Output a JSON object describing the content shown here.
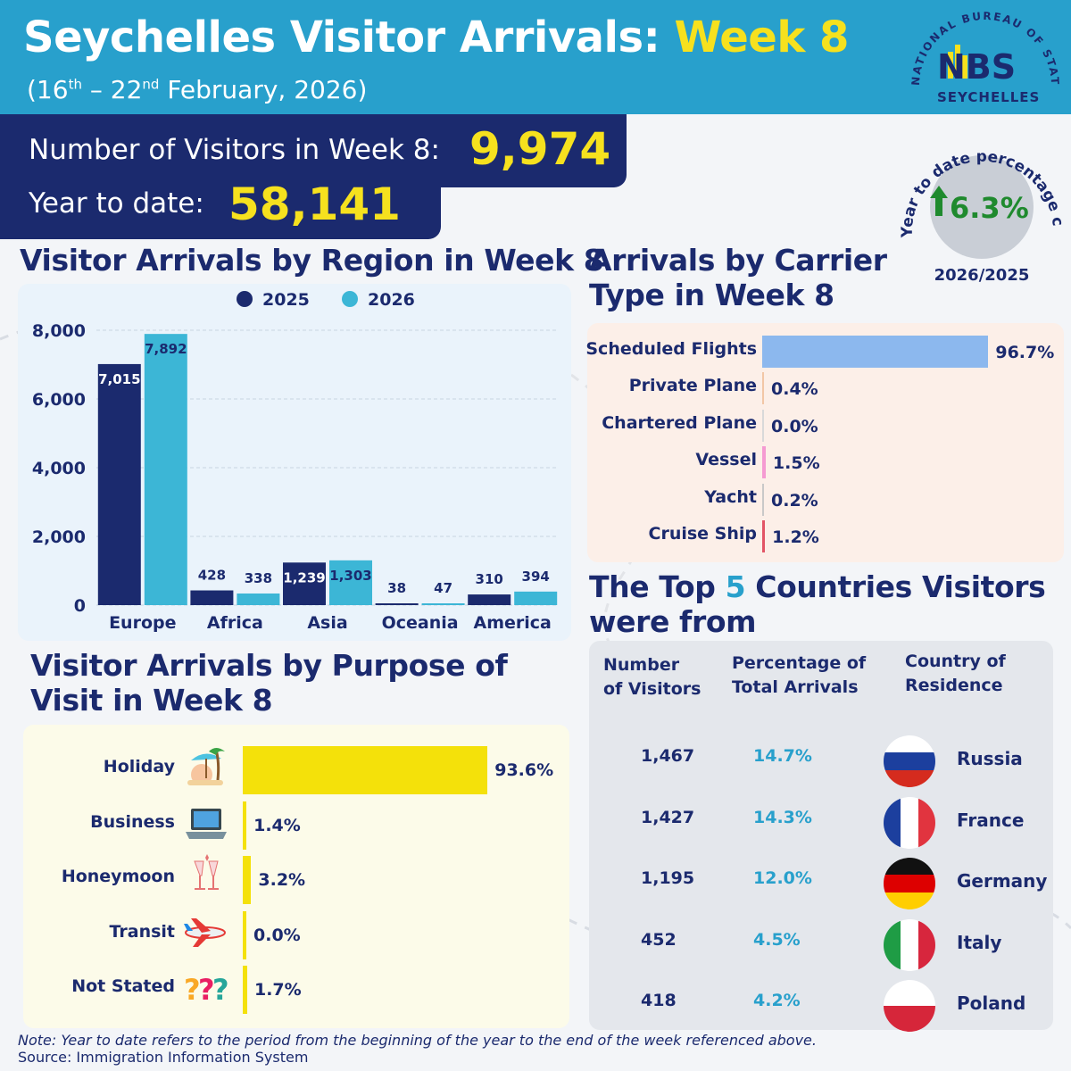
{
  "header": {
    "title_main": "Seychelles Visitor Arrivals: ",
    "title_highlight": "Week 8",
    "subtitle_open": "(16",
    "subtitle_sup1": "th",
    "subtitle_mid": " – 22",
    "subtitle_sup2": "nd",
    "subtitle_close": " February, 2026)"
  },
  "logo": {
    "arc_text": "NATIONAL BUREAU OF STATISTICS",
    "mark": "NBS",
    "country": "SEYCHELLES"
  },
  "summary": {
    "visitors_label": "Number of Visitors in Week 8:",
    "visitors_value": "9,974",
    "ytd_label": "Year to date:",
    "ytd_value": "58,141"
  },
  "ytd_change": {
    "arc_label": "Year to date percentage change",
    "value": "6.3%",
    "direction": "up",
    "period": "2026/2025",
    "color": "#1f8a2e"
  },
  "colors": {
    "navy": "#1b2a6e",
    "header_blue": "#28a0cc",
    "yellow": "#f6e11e",
    "series_2025": "#1b2a6e",
    "series_2026": "#3cb6d6",
    "carrier_scheduled": "#8cb8ee",
    "purpose_bar": "#f4e10a"
  },
  "sections": {
    "region_title": "Visitor Arrivals by Region in Week 8",
    "carrier_title_1": "Arrivals by Carrier",
    "carrier_title_2": "Type in Week 8",
    "purpose_title_1": "Visitor Arrivals by Purpose of",
    "purpose_title_2": "Visit in Week 8",
    "top5_title_pre": "The Top ",
    "top5_title_num": "5",
    "top5_title_post": " Countries Visitors",
    "top5_title_2": "were from"
  },
  "chart_data": [
    {
      "type": "bar",
      "categories": [
        "Europe",
        "Africa",
        "Asia",
        "Oceania",
        "America"
      ],
      "series": [
        {
          "name": "2025",
          "values": [
            7015,
            428,
            1239,
            38,
            310
          ],
          "labels": [
            "7,015",
            "428",
            "1,239",
            "38",
            "310"
          ]
        },
        {
          "name": "2026",
          "values": [
            7892,
            338,
            1303,
            47,
            394
          ],
          "labels": [
            "7,892",
            "338",
            "1,303",
            "47",
            "394"
          ]
        }
      ],
      "title": "Visitor Arrivals by Region in Week 8",
      "ylim": [
        0,
        8000
      ],
      "yticks": [
        0,
        2000,
        4000,
        6000,
        8000
      ],
      "ytick_labels": [
        "0",
        "2,000",
        "4,000",
        "6,000",
        "8,000"
      ],
      "grid": true,
      "legend": "top"
    },
    {
      "type": "bar",
      "orientation": "horizontal",
      "title": "Arrivals by Carrier Type in Week 8",
      "categories": [
        "Scheduled Flights",
        "Private Plane",
        "Chartered Plane",
        "Vessel",
        "Yacht",
        "Cruise Ship"
      ],
      "values": [
        96.7,
        0.4,
        0.0,
        1.5,
        0.2,
        1.2
      ],
      "labels": [
        "96.7%",
        "0.4%",
        "0.0%",
        "1.5%",
        "0.2%",
        "1.2%"
      ],
      "colors": [
        "#8cb8ee",
        "#f2c7a6",
        "#d9d9d9",
        "#f59ad2",
        "#c9c9c9",
        "#e25566"
      ]
    },
    {
      "type": "bar",
      "orientation": "horizontal",
      "title": "Visitor Arrivals by Purpose of Visit in Week 8",
      "categories": [
        "Holiday",
        "Business",
        "Honeymoon",
        "Transit",
        "Not Stated"
      ],
      "values": [
        93.6,
        1.4,
        3.2,
        0.0,
        1.7
      ],
      "labels": [
        "93.6%",
        "1.4%",
        "3.2%",
        "0.0%",
        "1.7%"
      ],
      "icons": [
        "beach-icon",
        "laptop-icon",
        "champagne-icon",
        "airplane-icon",
        "question-marks-icon"
      ]
    },
    {
      "type": "table",
      "title": "The Top 5 Countries Visitors were from",
      "columns": [
        "Number of Visitors",
        "Percentage of Total Arrivals",
        "Country of Residence"
      ],
      "rows": [
        {
          "visitors": "1,467",
          "pct": "14.7%",
          "country": "Russia",
          "flag": "russia-flag-icon"
        },
        {
          "visitors": "1,427",
          "pct": "14.3%",
          "country": "France",
          "flag": "france-flag-icon"
        },
        {
          "visitors": "1,195",
          "pct": "12.0%",
          "country": "Germany",
          "flag": "germany-flag-icon"
        },
        {
          "visitors": "452",
          "pct": "4.5%",
          "country": "Italy",
          "flag": "italy-flag-icon"
        },
        {
          "visitors": "418",
          "pct": "4.2%",
          "country": "Poland",
          "flag": "poland-flag-icon"
        }
      ]
    }
  ],
  "top5": {
    "col1_line1": "Number",
    "col1_line2": "of Visitors",
    "col2_line1": "Percentage of",
    "col2_line2": "Total Arrivals",
    "col3_line1": "Country of",
    "col3_line2": "Residence"
  },
  "footer": {
    "note": "Note: Year to date refers to the period from the beginning of the year to the end of the week referenced above.",
    "source": "Source: Immigration Information System"
  }
}
